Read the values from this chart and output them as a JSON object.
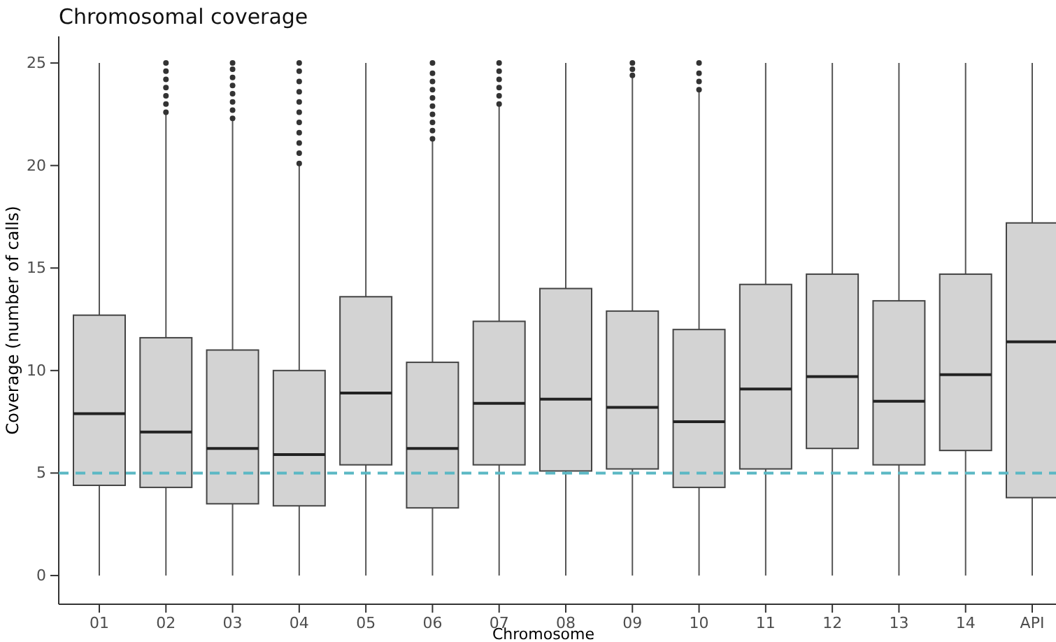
{
  "chart_data": {
    "type": "box",
    "title": "Chromosomal coverage",
    "xlabel": "Chromosome",
    "ylabel": "Coverage (number of calls)",
    "categories": [
      "01",
      "02",
      "03",
      "04",
      "05",
      "06",
      "07",
      "08",
      "09",
      "10",
      "11",
      "12",
      "13",
      "14",
      "API"
    ],
    "color": "#d3d3d3",
    "boxes": [
      {
        "low": 0,
        "q1": 4.4,
        "median": 7.9,
        "q3": 12.7,
        "high": 25
      },
      {
        "low": 0,
        "q1": 4.3,
        "median": 7.0,
        "q3": 11.6,
        "high": 22.5,
        "outliers": [
          22.6,
          23,
          23.4,
          23.8,
          24.2,
          24.6,
          25
        ]
      },
      {
        "low": 0,
        "q1": 3.5,
        "median": 6.2,
        "q3": 11.0,
        "high": 22.2,
        "outliers": [
          22.3,
          22.7,
          23.1,
          23.5,
          23.9,
          24.3,
          24.7,
          25
        ]
      },
      {
        "low": 0,
        "q1": 3.4,
        "median": 5.9,
        "q3": 10.0,
        "high": 20.0,
        "outliers": [
          20.1,
          20.6,
          21.1,
          21.6,
          22.1,
          22.6,
          23.1,
          23.6,
          24.1,
          24.6,
          25
        ]
      },
      {
        "low": 0,
        "q1": 5.4,
        "median": 8.9,
        "q3": 13.6,
        "high": 25
      },
      {
        "low": 0,
        "q1": 3.3,
        "median": 6.2,
        "q3": 10.4,
        "high": 21.2,
        "outliers": [
          21.3,
          21.7,
          22.1,
          22.5,
          22.9,
          23.3,
          23.7,
          24.1,
          24.5,
          25
        ]
      },
      {
        "low": 0,
        "q1": 5.4,
        "median": 8.4,
        "q3": 12.4,
        "high": 22.9,
        "outliers": [
          23,
          23.4,
          23.8,
          24.2,
          24.6,
          25
        ]
      },
      {
        "low": 0,
        "q1": 5.1,
        "median": 8.6,
        "q3": 14.0,
        "high": 25
      },
      {
        "low": 0,
        "q1": 5.2,
        "median": 8.2,
        "q3": 12.9,
        "high": 24.3,
        "outliers": [
          24.4,
          24.7,
          25
        ]
      },
      {
        "low": 0,
        "q1": 4.3,
        "median": 7.5,
        "q3": 12.0,
        "high": 23.6,
        "outliers": [
          23.7,
          24.1,
          24.5,
          25
        ]
      },
      {
        "low": 0,
        "q1": 5.2,
        "median": 9.1,
        "q3": 14.2,
        "high": 25
      },
      {
        "low": 0,
        "q1": 6.2,
        "median": 9.7,
        "q3": 14.7,
        "high": 25
      },
      {
        "low": 0,
        "q1": 5.4,
        "median": 8.5,
        "q3": 13.4,
        "high": 25
      },
      {
        "low": 0,
        "q1": 6.1,
        "median": 9.8,
        "q3": 14.7,
        "high": 25
      },
      {
        "low": 0,
        "q1": 3.8,
        "median": 11.4,
        "q3": 17.2,
        "high": 25
      }
    ],
    "ylim": [
      -1.4,
      26.3
    ],
    "yticks": [
      0,
      5,
      10,
      15,
      20,
      25
    ],
    "ref_lines": [
      {
        "axis": "y",
        "value": 5,
        "color": "#5bb8c4",
        "line_style": "dashed"
      }
    ]
  }
}
